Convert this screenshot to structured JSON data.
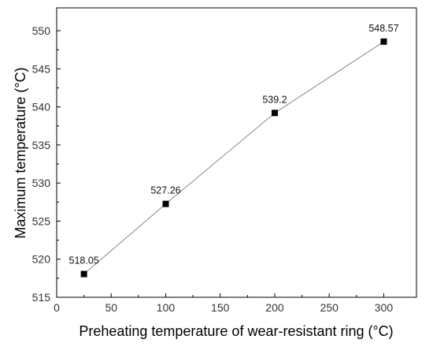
{
  "chart_data": {
    "type": "line",
    "title": "",
    "xlabel": "Preheating temperature of wear-resistant ring (°C)",
    "ylabel": "Maximum temperature (°C)",
    "xlim": [
      0,
      330
    ],
    "ylim": [
      515,
      553
    ],
    "x_ticks": [
      0,
      50,
      100,
      150,
      200,
      250,
      300
    ],
    "y_ticks": [
      515,
      520,
      525,
      530,
      535,
      540,
      545,
      550
    ],
    "grid": false,
    "legend": "none",
    "marker": "square",
    "series": [
      {
        "x": [
          25,
          100,
          200,
          300
        ],
        "y": [
          518.05,
          527.26,
          539.2,
          548.57
        ],
        "labels": [
          "518.05",
          "527.26",
          "539.2",
          "548.57"
        ],
        "line_color": "#888888",
        "marker_color": "#000000"
      }
    ]
  }
}
